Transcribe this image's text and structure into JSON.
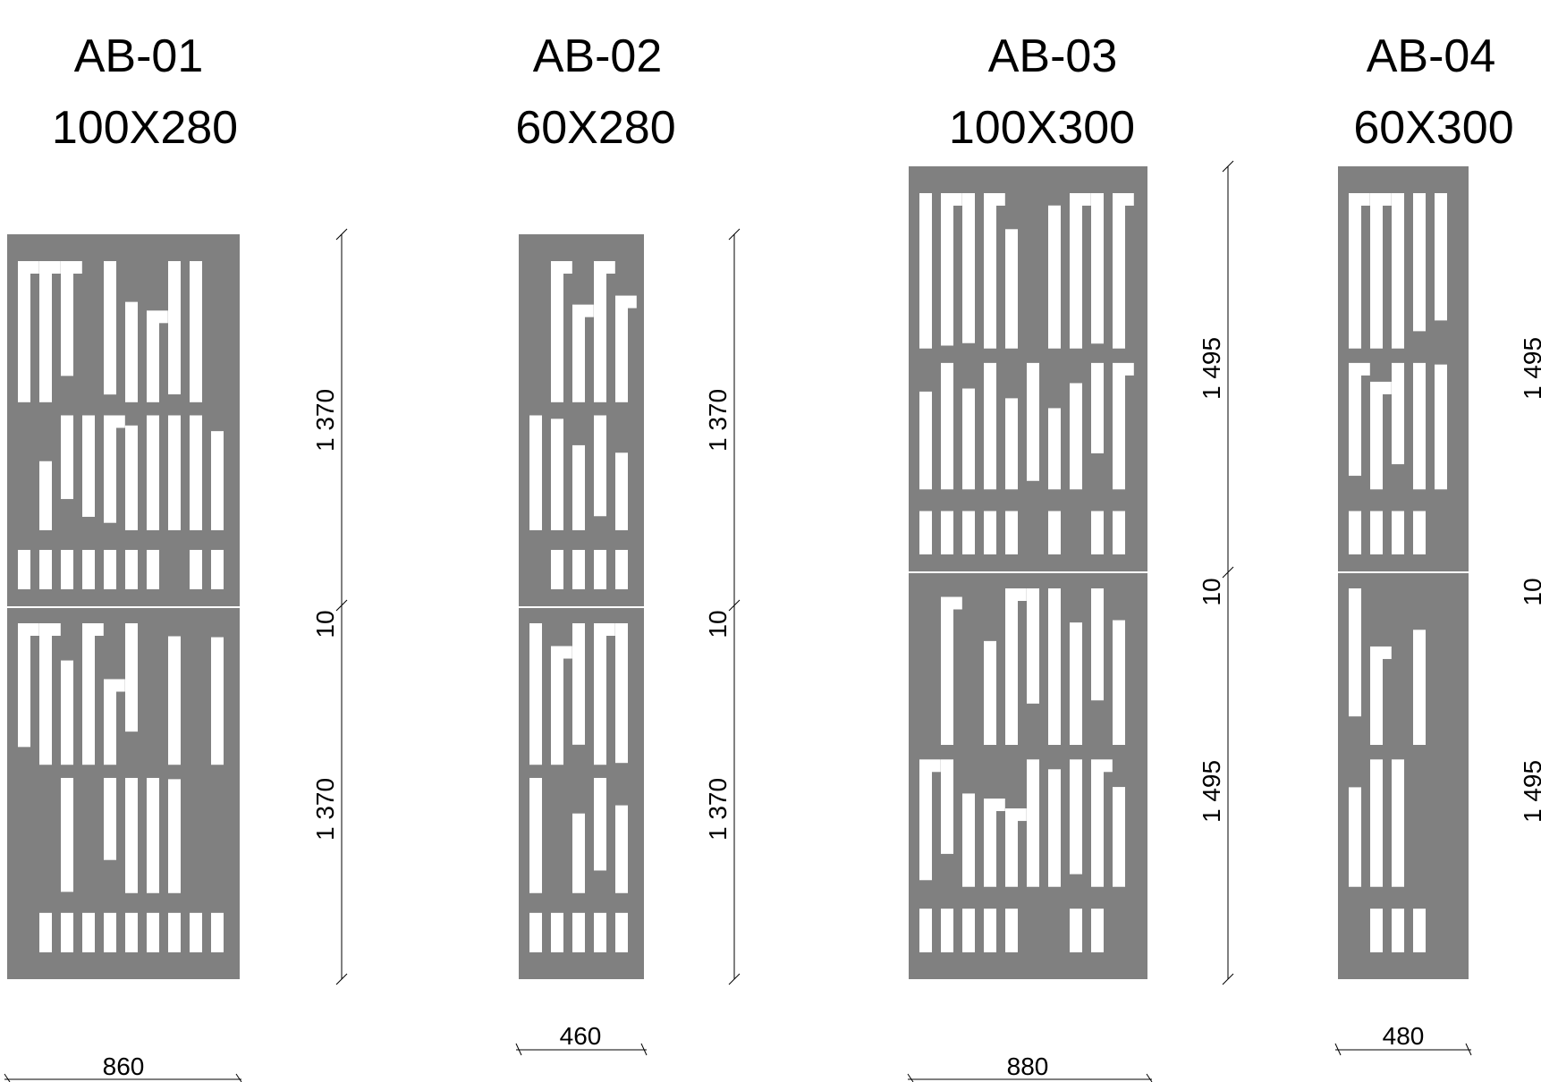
{
  "colors": {
    "panel": "#808080",
    "cutout": "#ffffff",
    "line": "#000000"
  },
  "panels": [
    {
      "id": "AB-01",
      "title": "AB-01",
      "size": "100X280",
      "width_dim": "860",
      "height_dims": [
        "1 370",
        "10",
        "1 370"
      ]
    },
    {
      "id": "AB-02",
      "title": "AB-02",
      "size": "60X280",
      "width_dim": "460",
      "height_dims": [
        "1 370",
        "10",
        "1 370"
      ]
    },
    {
      "id": "AB-03",
      "title": "AB-03",
      "size": "100X300",
      "width_dim": "880",
      "height_dims": [
        "1 495",
        "10",
        "1 495"
      ]
    },
    {
      "id": "AB-04",
      "title": "AB-04",
      "size": "60X300",
      "width_dim": "480",
      "height_dims": [
        "1 495",
        "10",
        "1 495"
      ]
    }
  ]
}
